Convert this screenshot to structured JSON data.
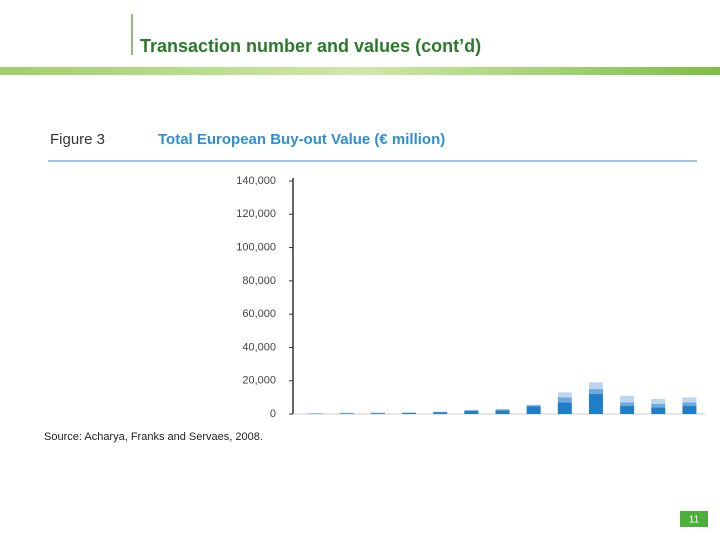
{
  "header": {
    "title": "Transaction number and values (cont’d)"
  },
  "figure_label": "Figure 3",
  "chart_data": {
    "type": "stacked-bar",
    "title": "Total European Buy-out Value (€ million)",
    "categories": [
      null,
      null,
      null,
      null,
      null,
      null,
      null,
      null,
      null,
      null,
      null,
      null,
      null
    ],
    "series": [
      {
        "color": "#1f7fc6",
        "values": [
          200,
          300,
          500,
          600,
          900,
          1800,
          2200,
          4500,
          7000,
          12000,
          5000,
          4000,
          5000
        ]
      },
      {
        "color": "#6fa8dc",
        "values": [
          100,
          200,
          200,
          200,
          300,
          500,
          500,
          800,
          3000,
          3000,
          2000,
          2000,
          2000
        ]
      },
      {
        "color": "#bcd6ee",
        "values": [
          200,
          300,
          300,
          200,
          300,
          200,
          300,
          300,
          3000,
          4000,
          4000,
          3000,
          3000
        ]
      }
    ],
    "ylim": [
      0,
      140000
    ],
    "yticks": [
      0,
      {
        "value": 20000,
        "label": "20,000"
      },
      {
        "value": 40000,
        "label": "40,000"
      },
      {
        "value": 60000,
        "label": "60,000"
      },
      {
        "value": 80000,
        "label": "80,000"
      },
      {
        "value": 100000,
        "label": "100,000"
      },
      {
        "value": 120000,
        "label": "120,000"
      },
      {
        "value": 140000,
        "label": "140,000"
      }
    ],
    "grid": false
  },
  "source": "Source: Acharya, Franks and Servaes, 2008.",
  "page_number": "11"
}
